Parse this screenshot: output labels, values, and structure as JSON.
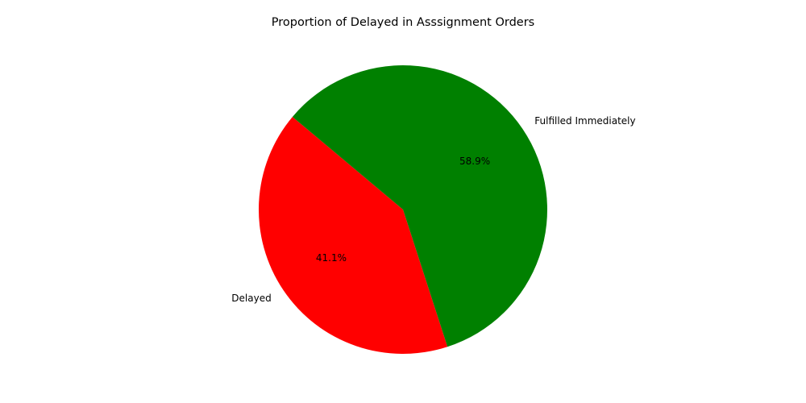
{
  "chart_data": {
    "type": "pie",
    "title": "Proportion of Delayed in Asssignment Orders",
    "start_angle_deg": 140,
    "direction": "counterclockwise",
    "slices": [
      {
        "label": "Delayed",
        "value": 41.1,
        "percent_label": "41.1%",
        "color": "#ff0000"
      },
      {
        "label": "Fulfilled Immediately",
        "value": 58.9,
        "percent_label": "58.9%",
        "color": "#008000"
      }
    ],
    "legend": "none"
  }
}
